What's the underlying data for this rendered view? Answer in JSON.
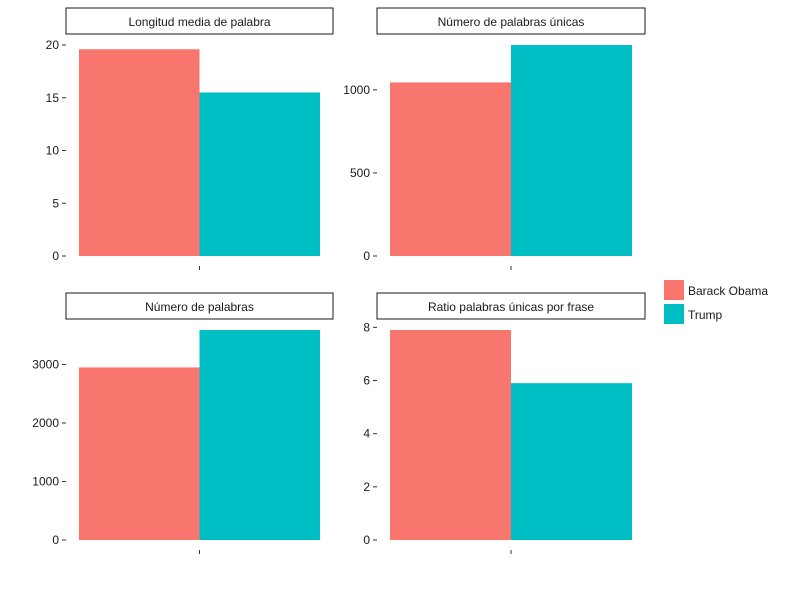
{
  "chart_data": {
    "type": "bar",
    "legend": {
      "placement": "right",
      "entries": [
        {
          "name": "Barack Obama",
          "color": "#F8766D"
        },
        {
          "name": "Trump",
          "color": "#00BFC4"
        }
      ]
    },
    "grid": false,
    "panels": [
      {
        "title": "Longitud media de palabra",
        "ylim": [
          0,
          20
        ],
        "yticks": [
          0,
          5,
          10,
          15,
          20
        ],
        "series": [
          {
            "name": "Barack Obama",
            "value": 19.6
          },
          {
            "name": "Trump",
            "value": 15.5
          }
        ]
      },
      {
        "title": "Número de palabras únicas",
        "ylim": [
          0,
          1270
        ],
        "yticks": [
          0,
          500,
          1000
        ],
        "series": [
          {
            "name": "Barack Obama",
            "value": 1045
          },
          {
            "name": "Trump",
            "value": 1270
          }
        ]
      },
      {
        "title": "Número de palabras",
        "ylim": [
          0,
          3590
        ],
        "yticks": [
          0,
          1000,
          2000,
          3000
        ],
        "series": [
          {
            "name": "Barack Obama",
            "value": 2950
          },
          {
            "name": "Trump",
            "value": 3590
          }
        ]
      },
      {
        "title": "Ratio palabras únicas por frase",
        "ylim": [
          0,
          7.9
        ],
        "yticks": [
          0,
          2,
          4,
          6,
          8
        ],
        "series": [
          {
            "name": "Barack Obama",
            "value": 7.9
          },
          {
            "name": "Trump",
            "value": 5.9
          }
        ]
      }
    ]
  }
}
